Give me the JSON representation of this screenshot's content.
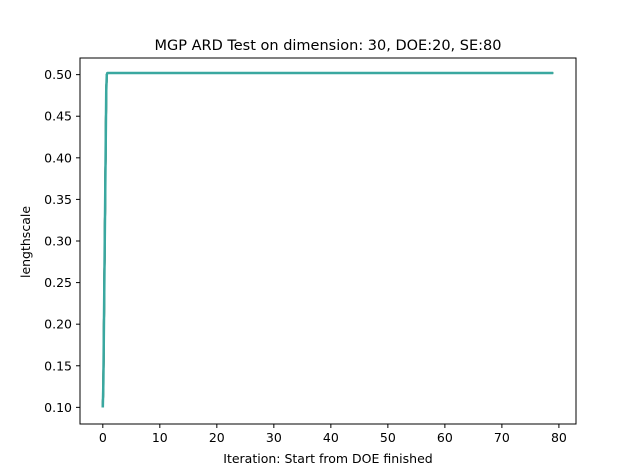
{
  "chart_data": {
    "type": "line",
    "title": "MGP ARD Test on dimension: 30, DOE:20, SE:80",
    "xlabel": "Iteration: Start from DOE finished",
    "ylabel": "lengthscale",
    "xlim": [
      -4,
      83
    ],
    "ylim": [
      0.08,
      0.52
    ],
    "xticks": [
      0,
      10,
      20,
      30,
      40,
      50,
      60,
      70,
      80
    ],
    "yticks": [
      "0.10",
      "0.15",
      "0.20",
      "0.25",
      "0.30",
      "0.35",
      "0.40",
      "0.45",
      "0.50"
    ],
    "grid": false,
    "series_colors": [
      "#1f77b4",
      "#ff7f0e",
      "#2ca02c",
      "#d62728",
      "#9467bd",
      "#8c564b",
      "#e377c2",
      "#7f7f7f",
      "#bcbd22",
      "#17becf"
    ],
    "top_color": "#3aa8a0",
    "series": [
      {
        "x": [
          0,
          0.1,
          0.2,
          0.3,
          0.4,
          0.5,
          0.6,
          0.7,
          0.8,
          0.9,
          1,
          2,
          10,
          20,
          30,
          40,
          50,
          60,
          70,
          79
        ],
        "values": [
          0.1,
          0.13,
          0.2,
          0.27,
          0.34,
          0.41,
          0.48,
          0.5,
          0.502,
          0.502,
          0.502,
          0.502,
          0.502,
          0.502,
          0.502,
          0.502,
          0.502,
          0.502,
          0.502,
          0.502
        ]
      }
    ]
  }
}
